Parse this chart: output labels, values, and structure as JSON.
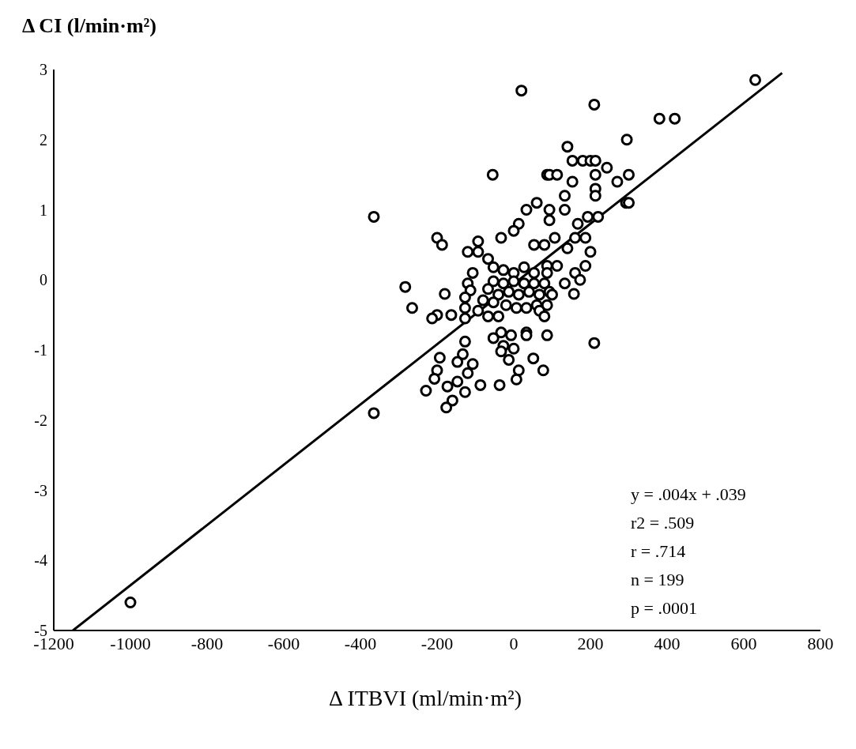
{
  "chart_data": {
    "type": "scatter",
    "ylabel": "Δ CI (l/min·m²)",
    "xlabel": "Δ ITBVI (ml/min·m²)",
    "xlim": [
      -1200,
      800
    ],
    "xticks": [
      -1200,
      -1000,
      -800,
      -600,
      -400,
      -200,
      0,
      200,
      400,
      600,
      800
    ],
    "ylim": [
      -5,
      3
    ],
    "yticks": [
      -5,
      -4,
      -3,
      -2,
      -1,
      0,
      1,
      2,
      3
    ],
    "grid": false,
    "legend": false,
    "marker": "circle",
    "annotations": [
      "y = .004x + .039",
      "r2 = .509",
      "r = .714",
      "n = 199",
      "p = .0001"
    ],
    "series": [
      {
        "color": "#000000",
        "x": [
          630,
          20,
          210,
          380,
          420,
          295,
          140,
          -55,
          -365,
          -365,
          -1000,
          210,
          -283,
          -265,
          -200,
          -187,
          -180,
          87,
          93,
          113,
          153,
          180,
          200,
          213,
          243,
          153,
          133,
          133,
          213,
          213,
          213,
          270,
          300,
          293,
          300,
          60,
          33,
          93,
          93,
          193,
          220,
          167,
          187,
          160,
          140,
          200,
          187,
          160,
          173,
          157,
          133,
          113,
          87,
          87,
          107,
          80,
          53,
          13,
          0,
          -33,
          -67,
          -93,
          -120,
          -93,
          -107,
          -120,
          -113,
          -127,
          -127,
          -127,
          -163,
          -200,
          -213,
          -53,
          -27,
          0,
          27,
          53,
          -53,
          -27,
          0,
          27,
          53,
          80,
          -67,
          -40,
          -13,
          13,
          40,
          67,
          93,
          -80,
          -53,
          -20,
          7,
          33,
          60,
          87,
          100,
          -93,
          -67,
          -40,
          67,
          80,
          -33,
          -7,
          -53,
          33,
          33,
          87,
          -27,
          0,
          -33,
          -13,
          51,
          13,
          7,
          77,
          -37,
          -87,
          -127,
          -133,
          -107,
          -147,
          -193,
          -200,
          -207,
          -173,
          -147,
          -127,
          -160,
          -176,
          -229,
          -120
        ],
        "values": [
          2.85,
          2.7,
          2.5,
          2.3,
          2.3,
          2.0,
          1.9,
          1.5,
          0.9,
          -1.9,
          -4.6,
          -0.9,
          -0.1,
          -0.4,
          0.6,
          0.5,
          -0.2,
          1.5,
          1.5,
          1.5,
          1.7,
          1.7,
          1.7,
          1.7,
          1.6,
          1.4,
          1.2,
          1.0,
          1.5,
          1.3,
          1.2,
          1.4,
          1.5,
          1.1,
          1.1,
          1.1,
          1.0,
          1.0,
          0.85,
          0.9,
          0.9,
          0.8,
          0.6,
          0.6,
          0.45,
          0.4,
          0.2,
          0.1,
          0.0,
          -0.2,
          -0.05,
          0.2,
          0.2,
          0.1,
          0.6,
          0.5,
          0.5,
          0.8,
          0.7,
          0.6,
          0.3,
          0.55,
          0.4,
          0.4,
          0.1,
          -0.05,
          -0.15,
          -0.25,
          -0.4,
          -0.55,
          -0.5,
          -0.5,
          -0.55,
          0.18,
          0.14,
          0.1,
          0.18,
          0.1,
          -0.02,
          -0.05,
          -0.02,
          -0.05,
          -0.05,
          -0.05,
          -0.13,
          -0.21,
          -0.17,
          -0.21,
          -0.17,
          -0.21,
          -0.17,
          -0.29,
          -0.32,
          -0.36,
          -0.4,
          -0.4,
          -0.36,
          -0.36,
          -0.21,
          -0.44,
          -0.52,
          -0.52,
          -0.44,
          -0.52,
          -0.75,
          -0.79,
          -0.83,
          -0.75,
          -0.79,
          -0.79,
          -0.94,
          -0.98,
          -1.02,
          -1.14,
          -1.12,
          -1.29,
          -1.42,
          -1.29,
          -1.5,
          -1.5,
          -0.88,
          -1.06,
          -1.2,
          -1.17,
          -1.11,
          -1.29,
          -1.41,
          -1.52,
          -1.45,
          -1.6,
          -1.72,
          -1.82,
          -1.58,
          -1.33
        ]
      },
      {
        "type": "line",
        "marker": "none",
        "color": "#000000",
        "x": [
          -1150,
          700
        ],
        "values": [
          -5,
          2.95
        ]
      }
    ]
  }
}
